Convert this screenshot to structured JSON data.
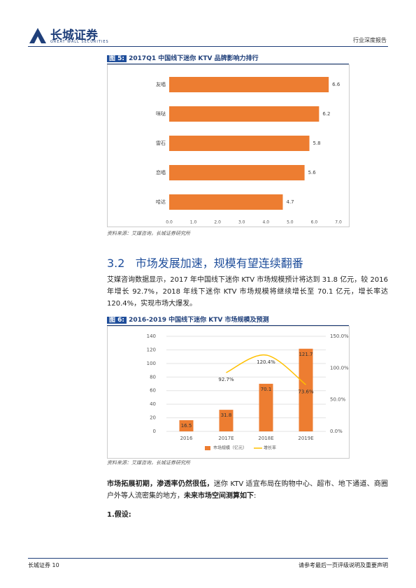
{
  "header": {
    "brand": "长城证券",
    "brand_en": "GREAT WALL SECURITIES",
    "report_type": "行业深度报告"
  },
  "figure5": {
    "label": "图 5:",
    "source": "资料来源：艾媒咨询，长城证券研究所"
  },
  "section": {
    "number": "3.2",
    "title": "市场发展加速，规模有望连续翻番"
  },
  "paragraph1": "艾媒咨询数据显示，2017 年中国线下迷你 KTV 市场规模预计将达到 31.8 亿元，较 2016 年增长 92.7%，2018 年线下迷你 KTV 市场规模将继续增长至 70.1 亿元，增长率达 120.4%，实现市场大爆发。",
  "figure6": {
    "label": "图 6:",
    "source": "资料来源：艾媒咨询，长城证券研究所"
  },
  "paragraph2": [
    {
      "text": "市场拓展初期，渗透率仍然很低，",
      "bold": true
    },
    {
      "text": "迷你 KTV 适宜布局在购物中心、超市、地下通道、商圈户外等人流密集的地方，",
      "bold": false
    },
    {
      "text": "未来市场空间测算如下",
      "bold": true
    },
    {
      "text": ":",
      "bold": false
    }
  ],
  "subheading": "1.假设:",
  "footer": {
    "left": "长城证券",
    "page": "10",
    "right": "请参考最后一页评级说明及重要声明"
  },
  "chart_data": [
    {
      "type": "hbar",
      "title": "2017Q1 中国线下迷你 KTV 品牌影响力排行",
      "categories": [
        "友唱",
        "咪哒",
        "雷石",
        "恋唱",
        "哈达"
      ],
      "values": [
        6.6,
        6.2,
        5.8,
        5.6,
        4.7
      ],
      "color": "#ed7d31",
      "xlim": [
        0,
        7
      ],
      "xticks": [
        {
          "value": 0,
          "label": "0.0"
        },
        {
          "value": 1,
          "label": "1.0"
        },
        {
          "value": 2,
          "label": "2.0"
        },
        {
          "value": 3,
          "label": "3.0"
        },
        {
          "value": 4,
          "label": "4.0"
        },
        {
          "value": 5,
          "label": "5.0"
        },
        {
          "value": 6,
          "label": "6.0"
        },
        {
          "value": 7,
          "label": "7.0"
        }
      ]
    },
    {
      "type": "combo",
      "title": "2016-2019 中国线下迷你 KTV 市场规模及预测",
      "categories": [
        "2016",
        "2017E",
        "2018E",
        "2019E"
      ],
      "series": [
        {
          "name": "市场规模（亿元）",
          "color": "#ed7d31",
          "values": [
            16.5,
            31.8,
            70.1,
            121.7
          ]
        },
        {
          "name": "增长率",
          "color": "#ffc000",
          "axis": "y2",
          "values": [
            null,
            92.7,
            120.4,
            73.6
          ],
          "value_labels": [
            null,
            "92.7%",
            "120.4%",
            "73.6%"
          ]
        }
      ],
      "ylim": [
        0,
        140
      ],
      "yticks": [
        0,
        20,
        40,
        60,
        80,
        100,
        120,
        140
      ],
      "y2lim": [
        0,
        150
      ],
      "y2ticks": [
        {
          "value": 0,
          "label": "0.0%"
        },
        {
          "value": 50,
          "label": "50.0%"
        },
        {
          "value": 100,
          "label": "100.0%"
        },
        {
          "value": 150,
          "label": "150.0%"
        }
      ],
      "grid": true
    }
  ]
}
